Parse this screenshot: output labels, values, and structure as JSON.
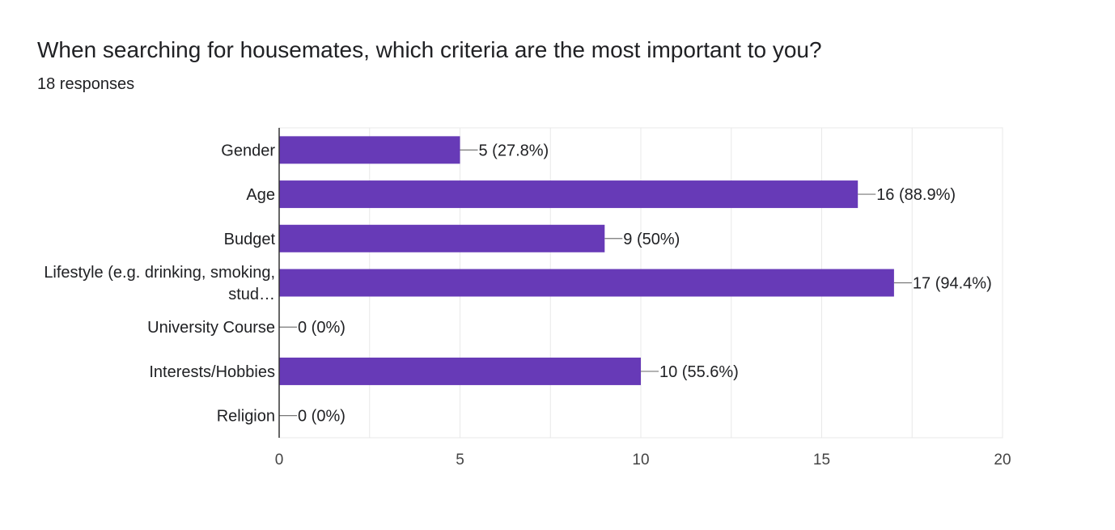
{
  "header": {
    "title": "When searching for housemates, which criteria are the most important to you?",
    "responses": "18 responses"
  },
  "colors": {
    "bar": "#673ab7",
    "grid": "#e8e8e8",
    "axis": "#333333",
    "connector": "#777777"
  },
  "chart_data": {
    "type": "bar",
    "orientation": "horizontal",
    "categories": [
      [
        "Gender"
      ],
      [
        "Age"
      ],
      [
        "Budget"
      ],
      [
        "Lifestyle (e.g. drinking, smoking,",
        "stud…"
      ],
      [
        "University Course"
      ],
      [
        "Interests/Hobbies"
      ],
      [
        "Religion"
      ]
    ],
    "values": [
      5,
      16,
      9,
      17,
      0,
      10,
      0
    ],
    "data_labels": [
      "5 (27.8%)",
      "16 (88.9%)",
      "9 (50%)",
      "17 (94.4%)",
      "0 (0%)",
      "10 (55.6%)",
      "0 (0%)"
    ],
    "xlim": [
      0,
      20
    ],
    "xticks": [
      0,
      5,
      10,
      15,
      20
    ],
    "grid": true,
    "legend": "none"
  }
}
